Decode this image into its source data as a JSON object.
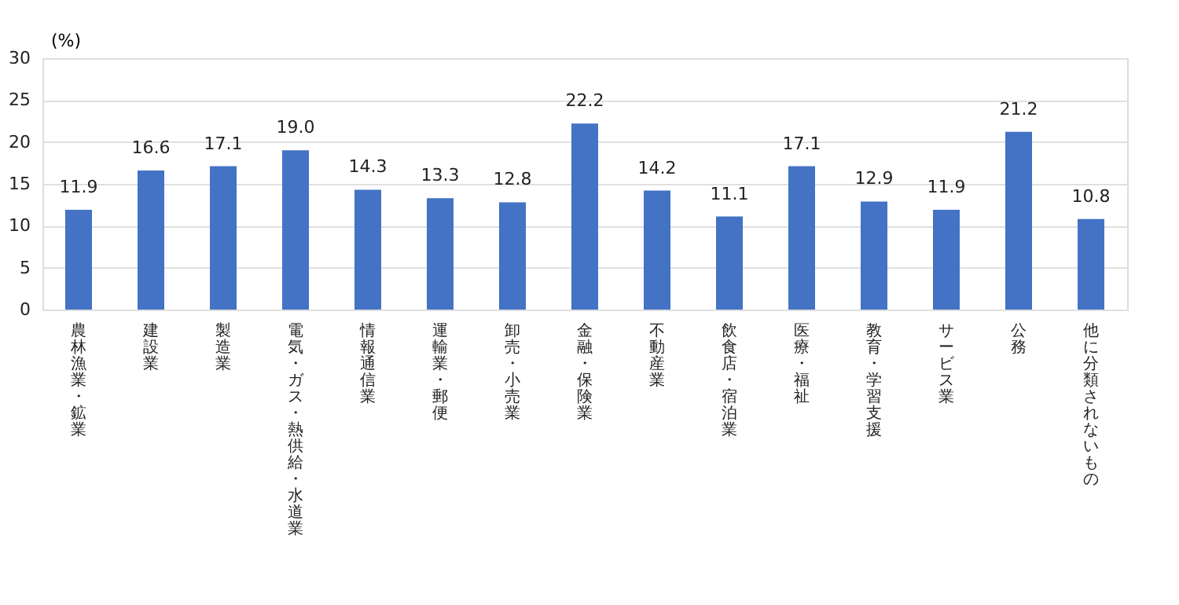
{
  "chart_data": {
    "type": "bar",
    "ylabel": "(%)",
    "categories": [
      "農林漁業・鉱業",
      "建設業",
      "製造業",
      "電気・ガス・熱供給・水道業",
      "情報通信業",
      "運輸業・郵便",
      "卸売・小売業",
      "金融・保険業",
      "不動産業",
      "飲食店・宿泊業",
      "医療・福祉",
      "教育・学習支援",
      "サービス業",
      "公務",
      "他に分類されないもの"
    ],
    "values": [
      11.9,
      16.6,
      17.1,
      19.0,
      14.3,
      13.3,
      12.8,
      22.2,
      14.2,
      11.1,
      17.1,
      12.9,
      11.9,
      21.2,
      10.8
    ],
    "color": "#4472c4",
    "ylim": [
      0,
      30
    ],
    "yticks": [
      0,
      5,
      10,
      15,
      20,
      25,
      30
    ],
    "grid": "y",
    "value_labels": [
      "11.9",
      "16.6",
      "17.1",
      "19.0",
      "14.3",
      "13.3",
      "12.8",
      "22.2",
      "14.2",
      "11.1",
      "17.1",
      "12.9",
      "11.9",
      "21.2",
      "10.8"
    ]
  }
}
